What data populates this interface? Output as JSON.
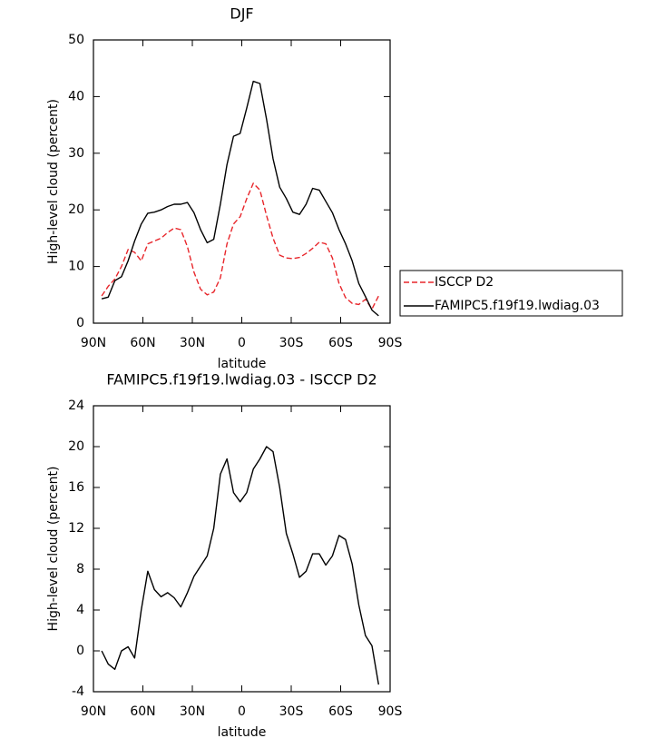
{
  "chart_data": [
    {
      "type": "line",
      "title": "DJF",
      "x_label": "latitude",
      "y_label": "High-level cloud (percent)",
      "x": [
        85,
        81,
        77,
        73,
        69,
        65,
        61,
        57,
        53,
        49,
        45,
        41,
        37,
        33,
        29,
        25,
        21,
        17,
        13,
        9,
        5,
        1,
        -3,
        -7,
        -11,
        -15,
        -19,
        -23,
        -27,
        -31,
        -35,
        -39,
        -43,
        -47,
        -51,
        -55,
        -59,
        -63,
        -67,
        -71,
        -75,
        -79,
        -83
      ],
      "series": [
        {
          "name": "ISCCP D2",
          "color": "#e8262b",
          "linestyle": "dashed",
          "values": [
            4.8,
            6.5,
            7.8,
            10,
            13,
            12.5,
            11,
            14,
            14.5,
            15,
            16,
            16.8,
            16.5,
            13.5,
            9,
            6,
            5,
            5.5,
            8,
            14,
            17.5,
            18.8,
            22,
            24.7,
            23.5,
            19,
            15,
            12,
            11.5,
            11.4,
            11.6,
            12.3,
            13.2,
            14.3,
            14,
            11.5,
            7,
            4.5,
            3.5,
            3.3,
            4.2,
            2.5,
            4.8
          ]
        },
        {
          "name": "FAMIPC5.f19f19.lwdiag.03",
          "color": "#000000",
          "linestyle": "solid",
          "values": [
            4.3,
            4.6,
            7.5,
            8.2,
            11,
            14.5,
            17.5,
            19.4,
            19.6,
            20,
            20.6,
            21,
            21,
            21.3,
            19.5,
            16.5,
            14.2,
            14.8,
            21,
            28,
            33,
            33.5,
            38,
            42.7,
            42.3,
            36,
            29,
            24,
            22,
            19.6,
            19.2,
            21,
            23.8,
            23.5,
            21.5,
            19.5,
            16.5,
            14,
            11,
            7,
            4.7,
            2.3,
            1.3
          ]
        }
      ],
      "xlim": [
        90,
        -90
      ],
      "xticks": [
        {
          "value": 90,
          "label": "90N"
        },
        {
          "value": 60,
          "label": "60N"
        },
        {
          "value": 30,
          "label": "30N"
        },
        0,
        {
          "value": -30,
          "label": "30S"
        },
        {
          "value": -60,
          "label": "60S"
        },
        {
          "value": -90,
          "label": "90S"
        }
      ],
      "ylim": [
        0,
        50
      ],
      "yticks": [
        0,
        10,
        20,
        30,
        40,
        50
      ],
      "legend": "right",
      "grid": false
    },
    {
      "type": "line",
      "title": "FAMIPC5.f19f19.lwdiag.03 - ISCCP D2",
      "x_label": "latitude",
      "y_label": "High-level cloud (percent)",
      "x": [
        85,
        81,
        77,
        73,
        69,
        65,
        61,
        57,
        53,
        49,
        45,
        41,
        37,
        33,
        29,
        25,
        21,
        17,
        13,
        9,
        5,
        1,
        -3,
        -7,
        -11,
        -15,
        -19,
        -23,
        -27,
        -31,
        -35,
        -39,
        -43,
        -47,
        -51,
        -55,
        -59,
        -63,
        -67,
        -71,
        -75,
        -79,
        -83
      ],
      "series": [
        {
          "color": "#000000",
          "linestyle": "solid",
          "values": [
            0,
            -1.3,
            -1.8,
            0,
            0.4,
            -0.7,
            4,
            7.8,
            6,
            5.3,
            5.7,
            5.2,
            4.3,
            5.7,
            7.3,
            8.3,
            9.3,
            12,
            17.3,
            18.8,
            15.5,
            14.6,
            15.5,
            17.8,
            18.8,
            20,
            19.5,
            16,
            11.5,
            9.5,
            7.2,
            7.8,
            9.5,
            9.5,
            8.4,
            9.3,
            11.3,
            10.9,
            8.5,
            4.5,
            1.5,
            0.5,
            -3.3
          ]
        }
      ],
      "xlim": [
        90,
        -90
      ],
      "xticks": [
        {
          "value": 90,
          "label": "90N"
        },
        {
          "value": 60,
          "label": "60N"
        },
        {
          "value": 30,
          "label": "30N"
        },
        0,
        {
          "value": -30,
          "label": "30S"
        },
        {
          "value": -60,
          "label": "60S"
        },
        {
          "value": -90,
          "label": "90S"
        }
      ],
      "ylim": [
        -4,
        24
      ],
      "yticks": [
        -4,
        0,
        4,
        8,
        12,
        16,
        20,
        24
      ],
      "grid": false
    }
  ]
}
